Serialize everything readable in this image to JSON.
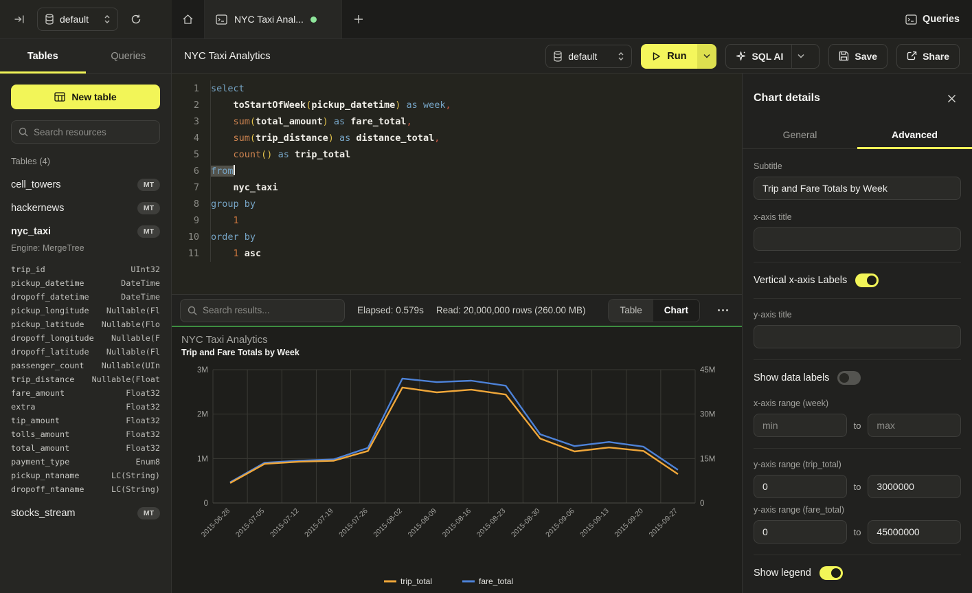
{
  "topbar": {
    "database": "default",
    "tab_title": "NYC Taxi Anal...",
    "queries_label": "Queries"
  },
  "header": {
    "title": "NYC Taxi Analytics",
    "database": "default",
    "run_label": "Run",
    "sql_ai_label": "SQL AI",
    "save_label": "Save",
    "share_label": "Share"
  },
  "sidebar": {
    "tab_tables": "Tables",
    "tab_queries": "Queries",
    "new_table": "New table",
    "search_placeholder": "Search resources",
    "section_title": "Tables (4)",
    "badge": "MT",
    "table_cell_towers": "cell_towers",
    "table_hackernews": "hackernews",
    "table_nyc_taxi": "nyc_taxi",
    "table_stocks_stream": "stocks_stream",
    "engine": "Engine: MergeTree",
    "columns": [
      {
        "name": "trip_id",
        "type": "UInt32"
      },
      {
        "name": "pickup_datetime",
        "type": "DateTime"
      },
      {
        "name": "dropoff_datetime",
        "type": "DateTime"
      },
      {
        "name": "pickup_longitude",
        "type": "Nullable(Fl"
      },
      {
        "name": "pickup_latitude",
        "type": "Nullable(Flo"
      },
      {
        "name": "dropoff_longitude",
        "type": "Nullable(F"
      },
      {
        "name": "dropoff_latitude",
        "type": "Nullable(Fl"
      },
      {
        "name": "passenger_count",
        "type": "Nullable(UIn"
      },
      {
        "name": "trip_distance",
        "type": "Nullable(Float"
      },
      {
        "name": "fare_amount",
        "type": "Float32"
      },
      {
        "name": "extra",
        "type": "Float32"
      },
      {
        "name": "tip_amount",
        "type": "Float32"
      },
      {
        "name": "tolls_amount",
        "type": "Float32"
      },
      {
        "name": "total_amount",
        "type": "Float32"
      },
      {
        "name": "payment_type",
        "type": "Enum8"
      },
      {
        "name": "pickup_ntaname",
        "type": "LC(String)"
      },
      {
        "name": "dropoff_ntaname",
        "type": "LC(String)"
      }
    ]
  },
  "editor": {
    "lines": [
      {
        "num": "1",
        "tokens": [
          {
            "c": "kw",
            "t": "select"
          }
        ]
      },
      {
        "num": "2",
        "tokens": [
          {
            "c": "pl",
            "t": "    "
          },
          {
            "c": "id",
            "t": "toStartOfWeek"
          },
          {
            "c": "pa",
            "t": "("
          },
          {
            "c": "id",
            "t": "pickup_datetime"
          },
          {
            "c": "pa",
            "t": ")"
          },
          {
            "c": "pl",
            "t": " "
          },
          {
            "c": "kw",
            "t": "as"
          },
          {
            "c": "pl",
            "t": " "
          },
          {
            "c": "kw",
            "t": "week"
          },
          {
            "c": "cm",
            "t": ","
          }
        ]
      },
      {
        "num": "3",
        "tokens": [
          {
            "c": "pl",
            "t": "    "
          },
          {
            "c": "fn",
            "t": "sum"
          },
          {
            "c": "pa",
            "t": "("
          },
          {
            "c": "id",
            "t": "total_amount"
          },
          {
            "c": "pa",
            "t": ")"
          },
          {
            "c": "pl",
            "t": " "
          },
          {
            "c": "kw",
            "t": "as"
          },
          {
            "c": "pl",
            "t": " "
          },
          {
            "c": "id",
            "t": "fare_total"
          },
          {
            "c": "cm",
            "t": ","
          }
        ]
      },
      {
        "num": "4",
        "tokens": [
          {
            "c": "pl",
            "t": "    "
          },
          {
            "c": "fn",
            "t": "sum"
          },
          {
            "c": "pa",
            "t": "("
          },
          {
            "c": "id",
            "t": "trip_distance"
          },
          {
            "c": "pa",
            "t": ")"
          },
          {
            "c": "pl",
            "t": " "
          },
          {
            "c": "kw",
            "t": "as"
          },
          {
            "c": "pl",
            "t": " "
          },
          {
            "c": "id",
            "t": "distance_total"
          },
          {
            "c": "cm",
            "t": ","
          }
        ]
      },
      {
        "num": "5",
        "tokens": [
          {
            "c": "pl",
            "t": "    "
          },
          {
            "c": "fn",
            "t": "count"
          },
          {
            "c": "pa",
            "t": "()"
          },
          {
            "c": "pl",
            "t": " "
          },
          {
            "c": "kw",
            "t": "as"
          },
          {
            "c": "pl",
            "t": " "
          },
          {
            "c": "id",
            "t": "trip_total"
          }
        ]
      },
      {
        "num": "6",
        "tokens": [
          {
            "c": "sel",
            "t": "from"
          }
        ]
      },
      {
        "num": "7",
        "tokens": [
          {
            "c": "pl",
            "t": "    "
          },
          {
            "c": "id",
            "t": "nyc_taxi"
          }
        ]
      },
      {
        "num": "8",
        "tokens": [
          {
            "c": "kw",
            "t": "group by"
          }
        ]
      },
      {
        "num": "9",
        "tokens": [
          {
            "c": "pl",
            "t": "    "
          },
          {
            "c": "nu",
            "t": "1"
          }
        ]
      },
      {
        "num": "10",
        "tokens": [
          {
            "c": "kw",
            "t": "order by"
          }
        ]
      },
      {
        "num": "11",
        "tokens": [
          {
            "c": "pl",
            "t": "    "
          },
          {
            "c": "nu",
            "t": "1"
          },
          {
            "c": "pl",
            "t": " "
          },
          {
            "c": "id",
            "t": "asc"
          }
        ]
      }
    ]
  },
  "results": {
    "search_placeholder": "Search results...",
    "elapsed": "Elapsed: 0.579s",
    "read": "Read: 20,000,000 rows (260.00 MB)",
    "table_label": "Table",
    "chart_label": "Chart"
  },
  "chart_data": {
    "type": "line",
    "title": "NYC Taxi Analytics",
    "subtitle": "Trip and Fare Totals by Week",
    "categories": [
      "2015-06-28",
      "2015-07-05",
      "2015-07-12",
      "2015-07-19",
      "2015-07-26",
      "2015-08-02",
      "2015-08-09",
      "2015-08-16",
      "2015-08-23",
      "2015-08-30",
      "2015-09-06",
      "2015-09-13",
      "2015-09-20",
      "2015-09-27"
    ],
    "series": [
      {
        "name": "trip_total",
        "color": "#f0a73a",
        "axis": "left",
        "values": [
          450000,
          880000,
          930000,
          950000,
          1170000,
          2600000,
          2490000,
          2550000,
          2440000,
          1450000,
          1160000,
          1250000,
          1170000,
          650000
        ]
      },
      {
        "name": "fare_total",
        "color": "#4d82d8",
        "axis": "right",
        "values": [
          7000000,
          13600000,
          14300000,
          14700000,
          18600000,
          42000000,
          40800000,
          41300000,
          39600000,
          23200000,
          19200000,
          20600000,
          19000000,
          11200000
        ]
      }
    ],
    "left_axis": {
      "min": 0,
      "max": 3000000,
      "ticks": [
        "0",
        "1M",
        "2M",
        "3M"
      ]
    },
    "right_axis": {
      "min": 0,
      "max": 45000000,
      "ticks": [
        "0",
        "15M",
        "30M",
        "45M"
      ]
    },
    "grid": true,
    "legend_position": "bottom",
    "vertical_x_labels": true
  },
  "panel": {
    "title": "Chart details",
    "tab_general": "General",
    "tab_advanced": "Advanced",
    "subtitle_label": "Subtitle",
    "subtitle_value": "Trip and Fare Totals by Week",
    "xaxis_title_label": "x-axis title",
    "xaxis_title_value": "",
    "vertical_labels_label": "Vertical x-axis Labels",
    "yaxis_title_label": "y-axis title",
    "yaxis_title_value": "",
    "show_data_labels_label": "Show data labels",
    "xaxis_range_label": "x-axis range (week)",
    "min_placeholder": "min",
    "max_placeholder": "max",
    "to_label": "to",
    "y1_range_label": "y-axis range (trip_total)",
    "y1_min": "0",
    "y1_max": "3000000",
    "y2_range_label": "y-axis range (fare_total)",
    "y2_min": "0",
    "y2_max": "45000000",
    "show_legend_label": "Show legend"
  }
}
